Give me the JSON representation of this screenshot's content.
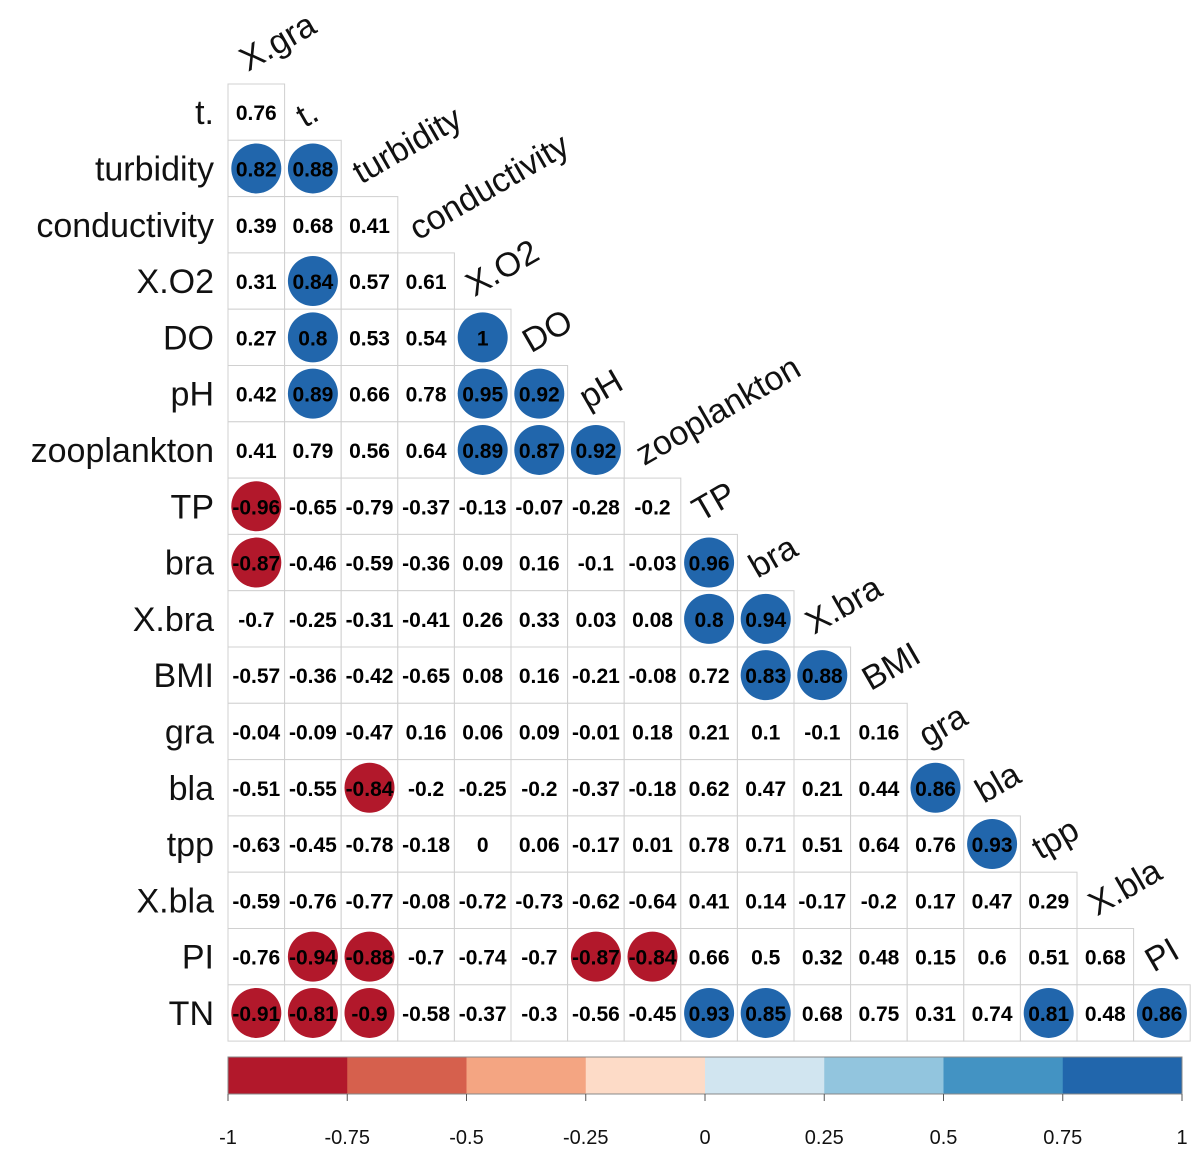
{
  "chart_data": {
    "type": "heatmap",
    "variables": [
      "X.gra",
      "t.",
      "turbidity",
      "conductivity",
      "X.O2",
      "DO",
      "pH",
      "zooplankton",
      "TP",
      "bra",
      "X.bra",
      "BMI",
      "gra",
      "bla",
      "tpp",
      "X.bla",
      "PI",
      "TN"
    ],
    "matrix": [
      [
        0.76
      ],
      [
        0.82,
        0.88
      ],
      [
        0.39,
        0.68,
        0.41
      ],
      [
        0.31,
        0.84,
        0.57,
        0.61
      ],
      [
        0.27,
        0.8,
        0.53,
        0.54,
        1
      ],
      [
        0.42,
        0.89,
        0.66,
        0.78,
        0.95,
        0.92
      ],
      [
        0.41,
        0.79,
        0.56,
        0.64,
        0.89,
        0.87,
        0.92
      ],
      [
        -0.96,
        -0.65,
        -0.79,
        -0.37,
        -0.13,
        -0.07,
        -0.28,
        -0.2
      ],
      [
        -0.87,
        -0.46,
        -0.59,
        -0.36,
        0.09,
        0.16,
        -0.1,
        -0.03,
        0.96
      ],
      [
        -0.7,
        -0.25,
        -0.31,
        -0.41,
        0.26,
        0.33,
        0.03,
        0.08,
        0.8,
        0.94
      ],
      [
        -0.57,
        -0.36,
        -0.42,
        -0.65,
        0.08,
        0.16,
        -0.21,
        -0.08,
        0.72,
        0.83,
        0.88
      ],
      [
        -0.04,
        -0.09,
        -0.47,
        0.16,
        0.06,
        0.09,
        -0.01,
        0.18,
        0.21,
        0.1,
        -0.1,
        0.16
      ],
      [
        -0.51,
        -0.55,
        -0.84,
        -0.2,
        -0.25,
        -0.2,
        -0.37,
        -0.18,
        0.62,
        0.47,
        0.21,
        0.44,
        0.86
      ],
      [
        -0.63,
        -0.45,
        -0.78,
        -0.18,
        0,
        0.06,
        -0.17,
        0.01,
        0.78,
        0.71,
        0.51,
        0.64,
        0.76,
        0.93
      ],
      [
        -0.59,
        -0.76,
        -0.77,
        -0.08,
        -0.72,
        -0.73,
        -0.62,
        -0.64,
        0.41,
        0.14,
        -0.17,
        -0.2,
        0.17,
        0.47,
        0.29
      ],
      [
        -0.76,
        -0.94,
        -0.88,
        -0.7,
        -0.74,
        -0.7,
        -0.87,
        -0.84,
        0.66,
        0.5,
        0.32,
        0.48,
        0.15,
        0.6,
        0.51,
        0.68
      ],
      [
        -0.91,
        -0.81,
        -0.9,
        -0.58,
        -0.37,
        -0.3,
        -0.56,
        -0.45,
        0.93,
        0.85,
        0.68,
        0.75,
        0.31,
        0.74,
        0.81,
        0.48,
        0.86
      ]
    ],
    "matrix_layout": "lower-triangle; row i is variables[i+1], column j is variables[j]",
    "circle_threshold": 0.8,
    "colorbar": {
      "ticks": [
        "-1",
        "-0.75",
        "-0.5",
        "-0.25",
        "0",
        "0.25",
        "0.5",
        "0.75",
        "1"
      ],
      "bins": [
        "#b2182b",
        "#d6604d",
        "#f4a582",
        "#fddbc7",
        "#d1e5f0",
        "#92c5de",
        "#4393c3",
        "#2166ac"
      ],
      "range": [
        -1,
        1
      ]
    },
    "circle_colors": {
      "positive": "#2166ac",
      "negative": "#b2182b"
    },
    "title": "",
    "xlabel": "",
    "ylabel": ""
  }
}
